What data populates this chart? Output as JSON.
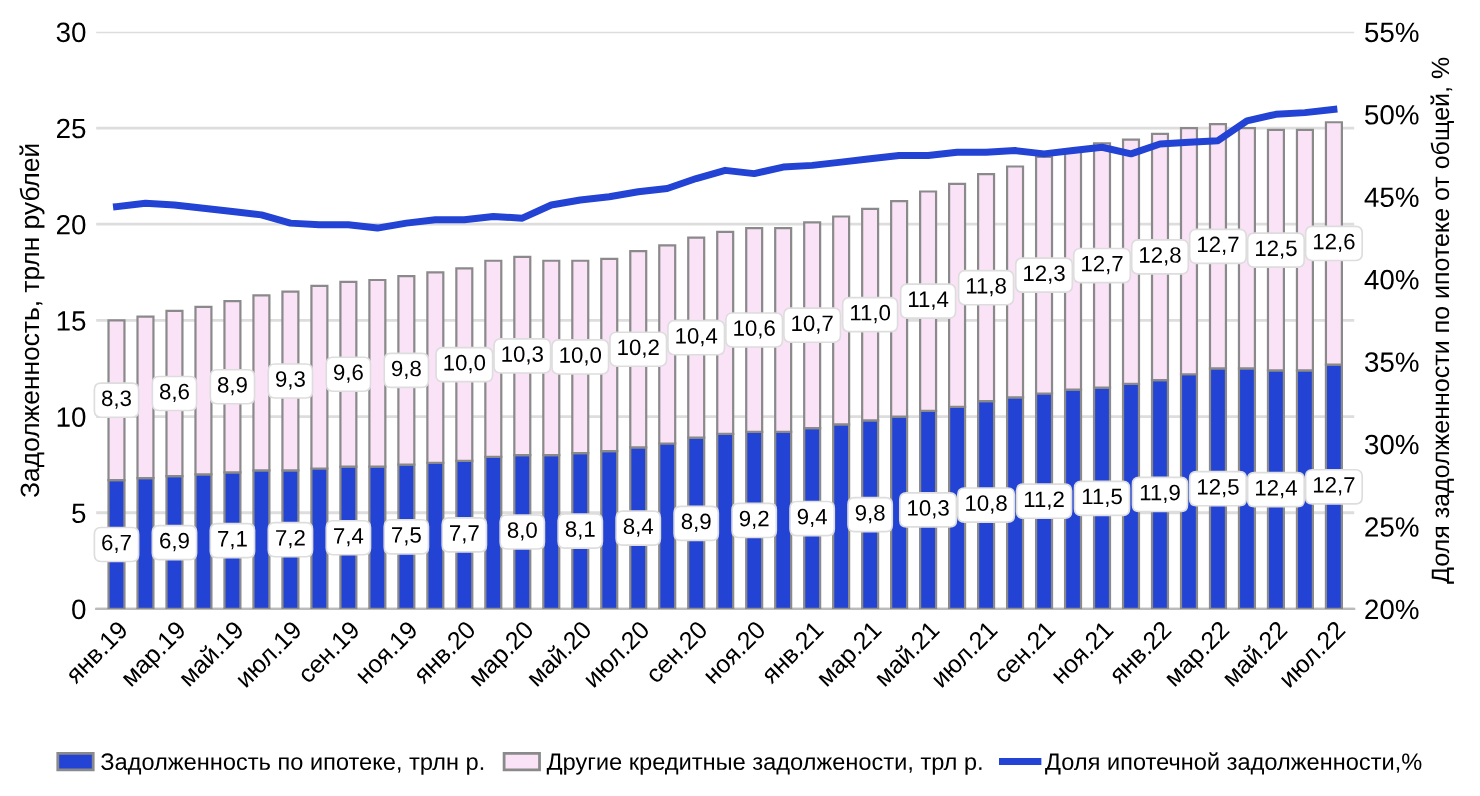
{
  "chart_data": {
    "type": "bar",
    "stacked": true,
    "categories": [
      "янв.19",
      null,
      "мар.19",
      null,
      "май.19",
      null,
      "июл.19",
      null,
      "сен.19",
      null,
      "ноя.19",
      null,
      "янв.20",
      null,
      "мар.20",
      null,
      "май.20",
      null,
      "июл.20",
      null,
      "сен.20",
      null,
      "ноя.20",
      null,
      "янв.21",
      null,
      "мар.21",
      null,
      "май.21",
      null,
      "июл.21",
      null,
      "сен.21",
      null,
      "ноя.21",
      null,
      "янв.22",
      null,
      "мар.22",
      null,
      "май.22",
      null,
      "июл.22"
    ],
    "ylabel": "Задолженность, трлн рублей",
    "y2label": "Доля задолженности по ипотеке от общей, %",
    "ylim": [
      0,
      30
    ],
    "yticks": [
      0,
      5,
      10,
      15,
      20,
      25,
      30
    ],
    "y2lim": [
      20,
      55
    ],
    "y2ticks": [
      {
        "value": 20,
        "label": "20%"
      },
      {
        "value": 25,
        "label": "25%"
      },
      {
        "value": 30,
        "label": "30%"
      },
      {
        "value": 35,
        "label": "35%"
      },
      {
        "value": 40,
        "label": "40%"
      },
      {
        "value": 45,
        "label": "45%"
      },
      {
        "value": 50,
        "label": "50%"
      },
      {
        "value": 55,
        "label": "55%"
      }
    ],
    "grid": "y",
    "legend": "bottom",
    "series": [
      {
        "name": "Задолженность по ипотеке, трлн р.",
        "color": "#2343d4",
        "values": [
          6.7,
          6.8,
          6.9,
          7.0,
          7.1,
          7.2,
          7.2,
          7.3,
          7.4,
          7.4,
          7.5,
          7.6,
          7.7,
          7.9,
          8.0,
          8.0,
          8.1,
          8.2,
          8.4,
          8.6,
          8.9,
          9.1,
          9.2,
          9.2,
          9.4,
          9.6,
          9.8,
          10.0,
          10.3,
          10.5,
          10.8,
          11.0,
          11.2,
          11.4,
          11.5,
          11.7,
          11.9,
          12.2,
          12.5,
          12.5,
          12.4,
          12.4,
          12.7
        ],
        "value_labels": [
          "6,7",
          null,
          "6,9",
          null,
          "7,1",
          null,
          "7,2",
          null,
          "7,4",
          null,
          "7,5",
          null,
          "7,7",
          null,
          "8,0",
          null,
          "8,1",
          null,
          "8,4",
          null,
          "8,9",
          null,
          "9,2",
          null,
          "9,4",
          null,
          "9,8",
          null,
          "10,3",
          null,
          "10,8",
          null,
          "11,2",
          null,
          "11,5",
          null,
          "11,9",
          null,
          "12,5",
          null,
          "12,4",
          null,
          "12,7"
        ]
      },
      {
        "name": "Другие кредитные задолжености, трл р.",
        "color": "#fbe3f7",
        "values": [
          8.3,
          8.4,
          8.6,
          8.7,
          8.9,
          9.1,
          9.3,
          9.5,
          9.6,
          9.7,
          9.8,
          9.9,
          10.0,
          10.2,
          10.3,
          10.1,
          10.0,
          10.0,
          10.2,
          10.3,
          10.4,
          10.5,
          10.6,
          10.6,
          10.7,
          10.8,
          11.0,
          11.2,
          11.4,
          11.6,
          11.8,
          12.0,
          12.3,
          12.5,
          12.7,
          12.7,
          12.8,
          12.8,
          12.7,
          12.5,
          12.5,
          12.5,
          12.6
        ],
        "value_labels": [
          "8,3",
          null,
          "8,6",
          null,
          "8,9",
          null,
          "9,3",
          null,
          "9,6",
          null,
          "9,8",
          null,
          "10,0",
          null,
          "10,3",
          null,
          "10,0",
          null,
          "10,2",
          null,
          "10,4",
          null,
          "10,6",
          null,
          "10,7",
          null,
          "11,0",
          null,
          "11,4",
          null,
          "11,8",
          null,
          "12,3",
          null,
          "12,7",
          null,
          "12,8",
          null,
          "12,7",
          null,
          "12,5",
          null,
          "12,6"
        ]
      },
      {
        "name": "Доля ипотечной задолженности,%",
        "type": "line",
        "axis": "y2",
        "color": "#2343d4",
        "marker": "none",
        "line_style": "solid",
        "values": [
          44.4,
          44.6,
          44.5,
          44.3,
          44.1,
          43.9,
          43.4,
          43.3,
          43.3,
          43.1,
          43.4,
          43.6,
          43.6,
          43.8,
          43.7,
          44.5,
          44.8,
          45.0,
          45.3,
          45.5,
          46.1,
          46.6,
          46.4,
          46.8,
          46.9,
          47.1,
          47.3,
          47.5,
          47.5,
          47.7,
          47.7,
          47.8,
          47.6,
          47.8,
          48.0,
          47.6,
          48.2,
          48.3,
          48.4,
          49.6,
          50.0,
          50.1,
          50.3
        ]
      }
    ]
  }
}
